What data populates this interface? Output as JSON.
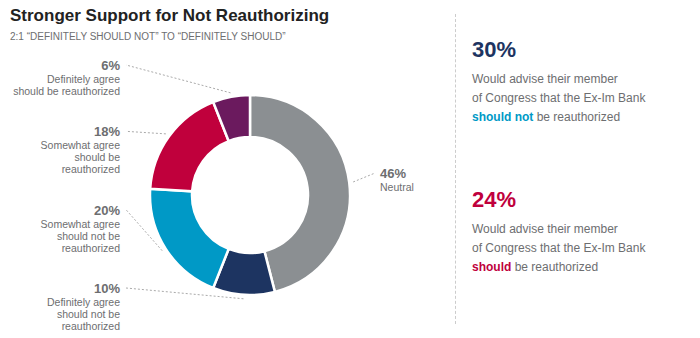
{
  "chart_data": {
    "type": "donut",
    "title": "Stronger Support for Not Reauthorizing",
    "subtitle": "2:1 “DEFINITELY SHOULD NOT” TO “DEFINITELY SHOULD”",
    "categories": [
      "Neutral",
      "Definitely agree\nshould not be\nreauthorized",
      "Somewhat agree\nshould not be\nreauthorized",
      "Somewhat agree\nshould be\nreauthorized",
      "Definitely agree\nshould be reauthorized"
    ],
    "values": [
      46,
      10,
      20,
      18,
      6
    ],
    "value_labels": [
      "46%",
      "10%",
      "20%",
      "18%",
      "6%"
    ],
    "data_labels": true,
    "colors": [
      "#8b8f92",
      "#1d3461",
      "#0099c6",
      "#c0003c",
      "#6b1a5e"
    ],
    "annotations": [
      {
        "value": 30,
        "label": "30%",
        "color": "#1d3461",
        "text": "Would advise their member\nof Congress that the Ex-Im Bank",
        "highlight": "should not",
        "highlight_color": "#0099c6",
        "suffix": " be reauthorized"
      },
      {
        "value": 24,
        "label": "24%",
        "color": "#c0003c",
        "text": "Would advise their member\nof Congress that the Ex-Im Bank",
        "highlight": "should",
        "highlight_color": "#c0003c",
        "suffix": " be reauthorized"
      }
    ]
  }
}
